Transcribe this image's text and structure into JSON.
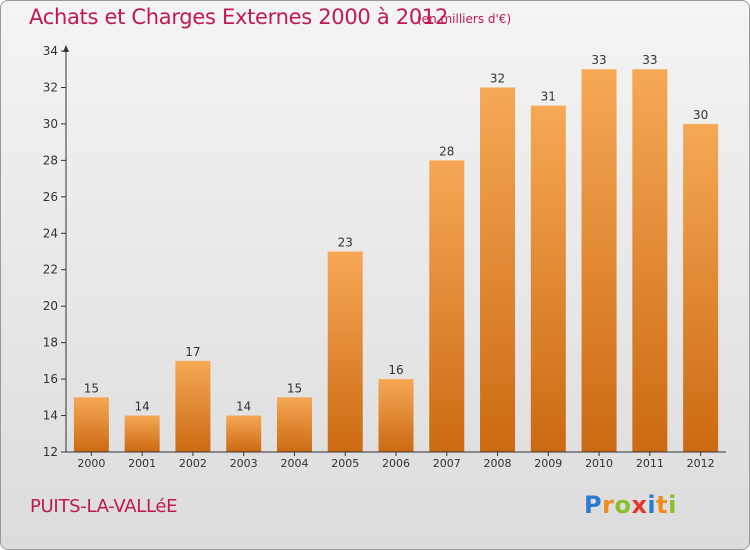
{
  "chart_data": {
    "type": "bar",
    "title": "Achats et Charges Externes 2000 à 2012",
    "subtitle": "(en milliers d'€)",
    "categories": [
      "2000",
      "2001",
      "2002",
      "2003",
      "2004",
      "2005",
      "2006",
      "2007",
      "2008",
      "2009",
      "2010",
      "2011",
      "2012"
    ],
    "values": [
      15,
      14,
      17,
      14,
      15,
      23,
      16,
      28,
      32,
      31,
      33,
      33,
      30
    ],
    "ylim": [
      12,
      34
    ],
    "yticks": [
      12,
      14,
      16,
      18,
      20,
      22,
      24,
      26,
      28,
      30,
      32,
      34
    ],
    "grid": false,
    "bar_color": "#f08c28",
    "bar_color_light": "#f6a855",
    "bar_color_dark": "#cc6a12"
  },
  "footer": {
    "commune": "PUITS-LA-VALLéE",
    "logo": {
      "letters": [
        "P",
        "r",
        "o",
        "x",
        "i",
        "t",
        "i"
      ],
      "colors": [
        "#2d7bd0",
        "#f08c1e",
        "#8bbf2c",
        "#e23a2a",
        "#2d7bd0",
        "#f08c1e",
        "#8bbf2c"
      ]
    }
  },
  "colors": {
    "accent": "#c0194f",
    "axis": "#333333"
  }
}
